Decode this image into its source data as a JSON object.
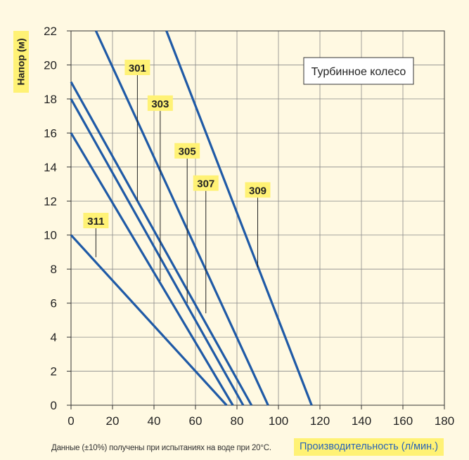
{
  "chart_data": {
    "type": "line",
    "ylabel": "Напор (м)",
    "xlabel": "Производительность (л/мин.)",
    "note": "Данные (±10%) получены при испытаниях на воде при 20°C.",
    "annotation": "Турбинное колесо",
    "xlim": [
      0,
      180
    ],
    "ylim": [
      0,
      22
    ],
    "xticks": [
      0,
      20,
      40,
      60,
      80,
      100,
      120,
      140,
      160,
      180
    ],
    "yticks": [
      0,
      2,
      4,
      6,
      8,
      10,
      12,
      14,
      16,
      18,
      20,
      22
    ],
    "grid": true,
    "line_color": "#1f5aa6",
    "label_bg": "#fff275",
    "series": [
      {
        "name": "301",
        "x": [
          12,
          95
        ],
        "y": [
          22,
          0
        ]
      },
      {
        "name": "303",
        "x": [
          0,
          87
        ],
        "y": [
          19,
          0
        ]
      },
      {
        "name": "305",
        "x": [
          0,
          83
        ],
        "y": [
          18,
          0
        ]
      },
      {
        "name": "307",
        "x": [
          0,
          78
        ],
        "y": [
          16,
          0
        ]
      },
      {
        "name": "309",
        "x": [
          46,
          116
        ],
        "y": [
          22,
          0
        ]
      },
      {
        "name": "311",
        "x": [
          0,
          75
        ],
        "y": [
          10,
          0
        ]
      }
    ],
    "callouts": [
      {
        "series": "301",
        "x": 32,
        "y": 12,
        "label_x": 32,
        "label_y": 19.4
      },
      {
        "series": "303",
        "x": 43,
        "y": 7.3,
        "label_x": 43,
        "label_y": 17.3
      },
      {
        "series": "305",
        "x": 56,
        "y": 6,
        "label_x": 56,
        "label_y": 14.5
      },
      {
        "series": "307",
        "x": 65,
        "y": 5.4,
        "label_x": 65,
        "label_y": 12.6
      },
      {
        "series": "309",
        "x": 90,
        "y": 8.1,
        "label_x": 90,
        "label_y": 12.2
      },
      {
        "series": "311",
        "x": 12,
        "y": 8.7,
        "label_x": 12,
        "label_y": 10.4
      }
    ]
  }
}
